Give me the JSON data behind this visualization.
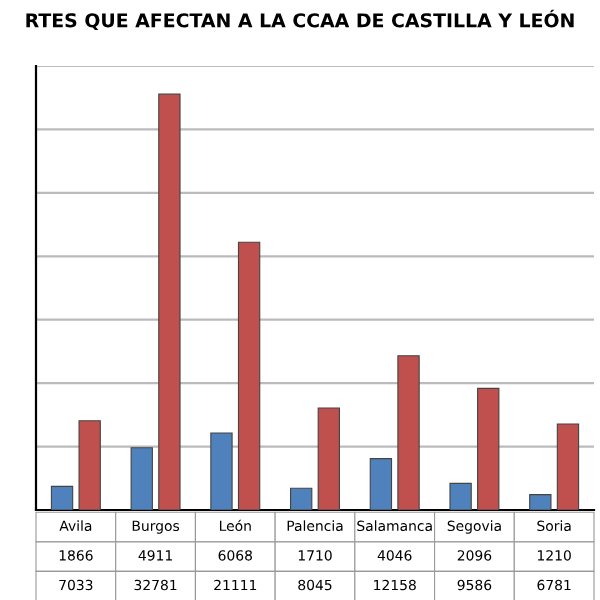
{
  "chart_data": {
    "type": "bar",
    "title": "RTES QUE AFECTAN A LA CCAA DE CASTILLA Y LEÓN",
    "categories": [
      "Avila",
      "Burgos",
      "León",
      "Palencia",
      "Salamanca",
      "Segovia",
      "Soria"
    ],
    "series": [
      {
        "color": "#4f81bd",
        "values": [
          1866,
          4911,
          6068,
          1710,
          4046,
          2096,
          1210
        ]
      },
      {
        "color": "#c0504d",
        "values": [
          7033,
          32781,
          21111,
          8045,
          12158,
          9586,
          6781
        ]
      }
    ],
    "ylim": [
      0,
      35000
    ],
    "yticks": [
      {
        "value": 0,
        "label": null
      },
      {
        "value": 5000,
        "label": null
      },
      {
        "value": 10000,
        "label": null
      },
      {
        "value": 15000,
        "label": null
      },
      {
        "value": 20000,
        "label": null
      },
      {
        "value": 25000,
        "label": null
      },
      {
        "value": 30000,
        "label": null
      },
      {
        "value": 35000,
        "label": null
      }
    ],
    "grid": "y",
    "data_labels": true
  }
}
